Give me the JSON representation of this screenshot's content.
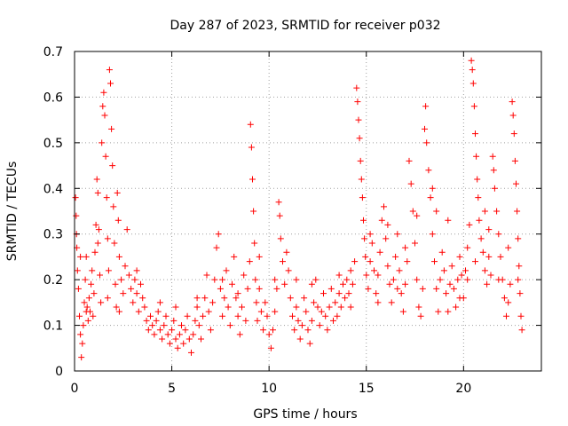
{
  "chart_data": {
    "type": "scatter",
    "title": "Day 287 of 2023, SRMTID for receiver p032",
    "xlabel": "GPS time / hours",
    "ylabel": "SRMTID / TECUs",
    "xlim": [
      0,
      24
    ],
    "ylim": [
      0,
      0.7
    ],
    "xticks": [
      0,
      5,
      10,
      15,
      20
    ],
    "xtick_labels": [
      "0",
      "5",
      "10",
      "15",
      "20"
    ],
    "yticks": [
      0,
      0.1,
      0.2,
      0.3,
      0.4,
      0.5,
      0.6,
      0.7
    ],
    "ytick_labels": [
      "0",
      "0.1",
      "0.2",
      "0.3",
      "0.4",
      "0.5",
      "0.6",
      "0.7"
    ],
    "grid": true,
    "marker": "+",
    "color": "#ff0000",
    "series": [
      {
        "name": "SRMTID",
        "points": [
          [
            0.05,
            0.38
          ],
          [
            0.08,
            0.34
          ],
          [
            0.1,
            0.3
          ],
          [
            0.12,
            0.27
          ],
          [
            0.15,
            0.22
          ],
          [
            0.2,
            0.18
          ],
          [
            0.25,
            0.12
          ],
          [
            0.3,
            0.08
          ],
          [
            0.35,
            0.03
          ],
          [
            0.4,
            0.06
          ],
          [
            0.45,
            0.1
          ],
          [
            0.5,
            0.15
          ],
          [
            0.55,
            0.2
          ],
          [
            0.6,
            0.25
          ],
          [
            0.65,
            0.14
          ],
          [
            0.7,
            0.11
          ],
          [
            0.75,
            0.16
          ],
          [
            0.8,
            0.13
          ],
          [
            0.85,
            0.19
          ],
          [
            0.9,
            0.22
          ],
          [
            0.95,
            0.12
          ],
          [
            1.0,
            0.17
          ],
          [
            1.05,
            0.26
          ],
          [
            1.1,
            0.32
          ],
          [
            1.15,
            0.42
          ],
          [
            1.2,
            0.39
          ],
          [
            1.25,
            0.31
          ],
          [
            1.3,
            0.21
          ],
          [
            1.35,
            0.15
          ],
          [
            1.4,
            0.5
          ],
          [
            1.45,
            0.58
          ],
          [
            1.5,
            0.61
          ],
          [
            1.55,
            0.56
          ],
          [
            1.6,
            0.47
          ],
          [
            1.65,
            0.38
          ],
          [
            1.7,
            0.29
          ],
          [
            1.75,
            0.22
          ],
          [
            1.8,
            0.66
          ],
          [
            1.85,
            0.63
          ],
          [
            1.9,
            0.53
          ],
          [
            1.95,
            0.45
          ],
          [
            2.0,
            0.36
          ],
          [
            2.05,
            0.28
          ],
          [
            2.1,
            0.19
          ],
          [
            2.15,
            0.14
          ],
          [
            2.2,
            0.39
          ],
          [
            2.25,
            0.33
          ],
          [
            2.3,
            0.25
          ],
          [
            2.4,
            0.2
          ],
          [
            2.5,
            0.17
          ],
          [
            2.6,
            0.23
          ],
          [
            2.7,
            0.31
          ],
          [
            2.8,
            0.21
          ],
          [
            2.9,
            0.18
          ],
          [
            3.0,
            0.15
          ],
          [
            3.1,
            0.2
          ],
          [
            3.2,
            0.17
          ],
          [
            3.3,
            0.13
          ],
          [
            3.4,
            0.19
          ],
          [
            3.5,
            0.16
          ],
          [
            3.6,
            0.14
          ],
          [
            3.7,
            0.11
          ],
          [
            3.8,
            0.09
          ],
          [
            3.9,
            0.12
          ],
          [
            4.0,
            0.1
          ],
          [
            4.1,
            0.08
          ],
          [
            4.2,
            0.11
          ],
          [
            4.3,
            0.13
          ],
          [
            4.4,
            0.09
          ],
          [
            4.5,
            0.07
          ],
          [
            4.6,
            0.1
          ],
          [
            4.7,
            0.12
          ],
          [
            4.8,
            0.08
          ],
          [
            4.9,
            0.06
          ],
          [
            5.0,
            0.09
          ],
          [
            5.1,
            0.11
          ],
          [
            5.2,
            0.07
          ],
          [
            5.3,
            0.05
          ],
          [
            5.4,
            0.08
          ],
          [
            5.5,
            0.1
          ],
          [
            5.6,
            0.06
          ],
          [
            5.7,
            0.09
          ],
          [
            5.8,
            0.12
          ],
          [
            5.9,
            0.07
          ],
          [
            6.0,
            0.04
          ],
          [
            6.1,
            0.08
          ],
          [
            6.2,
            0.11
          ],
          [
            6.3,
            0.14
          ],
          [
            6.4,
            0.1
          ],
          [
            6.5,
            0.07
          ],
          [
            6.6,
            0.12
          ],
          [
            6.7,
            0.16
          ],
          [
            6.8,
            0.21
          ],
          [
            6.9,
            0.13
          ],
          [
            7.0,
            0.09
          ],
          [
            7.1,
            0.15
          ],
          [
            7.2,
            0.2
          ],
          [
            7.3,
            0.27
          ],
          [
            7.4,
            0.3
          ],
          [
            7.5,
            0.18
          ],
          [
            7.6,
            0.12
          ],
          [
            7.7,
            0.16
          ],
          [
            7.8,
            0.22
          ],
          [
            7.9,
            0.14
          ],
          [
            8.0,
            0.1
          ],
          [
            8.1,
            0.19
          ],
          [
            8.2,
            0.25
          ],
          [
            8.3,
            0.16
          ],
          [
            8.4,
            0.12
          ],
          [
            8.5,
            0.08
          ],
          [
            8.6,
            0.14
          ],
          [
            8.7,
            0.21
          ],
          [
            8.8,
            0.11
          ],
          [
            8.9,
            0.18
          ],
          [
            9.0,
            0.24
          ],
          [
            9.05,
            0.54
          ],
          [
            9.1,
            0.49
          ],
          [
            9.15,
            0.42
          ],
          [
            9.2,
            0.35
          ],
          [
            9.25,
            0.28
          ],
          [
            9.3,
            0.2
          ],
          [
            9.35,
            0.15
          ],
          [
            9.4,
            0.11
          ],
          [
            9.5,
            0.18
          ],
          [
            9.6,
            0.13
          ],
          [
            9.7,
            0.09
          ],
          [
            9.8,
            0.15
          ],
          [
            9.9,
            0.12
          ],
          [
            10.0,
            0.08
          ],
          [
            10.1,
            0.05
          ],
          [
            10.2,
            0.09
          ],
          [
            10.3,
            0.13
          ],
          [
            10.4,
            0.18
          ],
          [
            10.5,
            0.37
          ],
          [
            10.55,
            0.34
          ],
          [
            10.6,
            0.29
          ],
          [
            10.7,
            0.24
          ],
          [
            10.8,
            0.19
          ],
          [
            10.9,
            0.26
          ],
          [
            11.0,
            0.22
          ],
          [
            11.1,
            0.16
          ],
          [
            11.2,
            0.12
          ],
          [
            11.3,
            0.09
          ],
          [
            11.4,
            0.14
          ],
          [
            11.5,
            0.11
          ],
          [
            11.6,
            0.07
          ],
          [
            11.7,
            0.1
          ],
          [
            11.8,
            0.16
          ],
          [
            11.9,
            0.13
          ],
          [
            12.0,
            0.09
          ],
          [
            12.1,
            0.06
          ],
          [
            12.2,
            0.11
          ],
          [
            12.3,
            0.15
          ],
          [
            12.4,
            0.2
          ],
          [
            12.5,
            0.14
          ],
          [
            12.6,
            0.1
          ],
          [
            12.7,
            0.13
          ],
          [
            12.8,
            0.17
          ],
          [
            12.9,
            0.12
          ],
          [
            13.0,
            0.09
          ],
          [
            13.1,
            0.14
          ],
          [
            13.2,
            0.18
          ],
          [
            13.3,
            0.11
          ],
          [
            13.4,
            0.15
          ],
          [
            13.5,
            0.12
          ],
          [
            13.6,
            0.17
          ],
          [
            13.7,
            0.14
          ],
          [
            13.8,
            0.19
          ],
          [
            13.9,
            0.16
          ],
          [
            14.0,
            0.2
          ],
          [
            14.1,
            0.17
          ],
          [
            14.2,
            0.22
          ],
          [
            14.3,
            0.19
          ],
          [
            14.4,
            0.24
          ],
          [
            14.5,
            0.62
          ],
          [
            14.55,
            0.59
          ],
          [
            14.6,
            0.55
          ],
          [
            14.65,
            0.51
          ],
          [
            14.7,
            0.46
          ],
          [
            14.75,
            0.42
          ],
          [
            14.8,
            0.38
          ],
          [
            14.85,
            0.33
          ],
          [
            14.9,
            0.29
          ],
          [
            14.95,
            0.25
          ],
          [
            15.0,
            0.21
          ],
          [
            15.1,
            0.18
          ],
          [
            15.2,
            0.24
          ],
          [
            15.3,
            0.28
          ],
          [
            15.4,
            0.22
          ],
          [
            15.5,
            0.17
          ],
          [
            15.6,
            0.21
          ],
          [
            15.7,
            0.26
          ],
          [
            15.8,
            0.33
          ],
          [
            15.9,
            0.36
          ],
          [
            16.0,
            0.29
          ],
          [
            16.1,
            0.23
          ],
          [
            16.2,
            0.19
          ],
          [
            16.3,
            0.15
          ],
          [
            16.4,
            0.2
          ],
          [
            16.5,
            0.25
          ],
          [
            16.6,
            0.3
          ],
          [
            16.7,
            0.22
          ],
          [
            16.8,
            0.17
          ],
          [
            16.9,
            0.13
          ],
          [
            17.0,
            0.19
          ],
          [
            17.1,
            0.24
          ],
          [
            17.2,
            0.46
          ],
          [
            17.3,
            0.41
          ],
          [
            17.4,
            0.35
          ],
          [
            17.5,
            0.28
          ],
          [
            17.6,
            0.2
          ],
          [
            17.7,
            0.14
          ],
          [
            17.8,
            0.12
          ],
          [
            17.9,
            0.18
          ],
          [
            18.0,
            0.53
          ],
          [
            18.05,
            0.58
          ],
          [
            18.1,
            0.5
          ],
          [
            18.2,
            0.44
          ],
          [
            18.3,
            0.38
          ],
          [
            18.4,
            0.3
          ],
          [
            18.5,
            0.24
          ],
          [
            18.6,
            0.18
          ],
          [
            18.7,
            0.13
          ],
          [
            18.8,
            0.2
          ],
          [
            18.9,
            0.26
          ],
          [
            19.0,
            0.22
          ],
          [
            19.1,
            0.17
          ],
          [
            19.2,
            0.13
          ],
          [
            19.3,
            0.19
          ],
          [
            19.4,
            0.23
          ],
          [
            19.5,
            0.18
          ],
          [
            19.6,
            0.14
          ],
          [
            19.7,
            0.2
          ],
          [
            19.8,
            0.25
          ],
          [
            19.9,
            0.21
          ],
          [
            20.0,
            0.16
          ],
          [
            20.1,
            0.22
          ],
          [
            20.2,
            0.27
          ],
          [
            20.3,
            0.32
          ],
          [
            20.4,
            0.68
          ],
          [
            20.45,
            0.66
          ],
          [
            20.5,
            0.63
          ],
          [
            20.55,
            0.58
          ],
          [
            20.6,
            0.52
          ],
          [
            20.65,
            0.47
          ],
          [
            20.7,
            0.42
          ],
          [
            20.75,
            0.38
          ],
          [
            20.8,
            0.33
          ],
          [
            20.9,
            0.29
          ],
          [
            21.0,
            0.26
          ],
          [
            21.1,
            0.22
          ],
          [
            21.2,
            0.19
          ],
          [
            21.3,
            0.25
          ],
          [
            21.4,
            0.21
          ],
          [
            21.5,
            0.47
          ],
          [
            21.55,
            0.44
          ],
          [
            21.6,
            0.4
          ],
          [
            21.7,
            0.35
          ],
          [
            21.8,
            0.3
          ],
          [
            21.9,
            0.25
          ],
          [
            22.0,
            0.2
          ],
          [
            22.1,
            0.16
          ],
          [
            22.2,
            0.12
          ],
          [
            22.3,
            0.15
          ],
          [
            22.4,
            0.19
          ],
          [
            22.5,
            0.59
          ],
          [
            22.55,
            0.56
          ],
          [
            22.6,
            0.52
          ],
          [
            22.65,
            0.46
          ],
          [
            22.7,
            0.41
          ],
          [
            22.75,
            0.35
          ],
          [
            22.8,
            0.29
          ],
          [
            22.85,
            0.23
          ],
          [
            22.9,
            0.17
          ],
          [
            22.95,
            0.12
          ],
          [
            23.0,
            0.09
          ],
          [
            0.3,
            0.25
          ],
          [
            0.6,
            0.13
          ],
          [
            1.2,
            0.28
          ],
          [
            1.7,
            0.16
          ],
          [
            2.3,
            0.13
          ],
          [
            3.2,
            0.22
          ],
          [
            4.4,
            0.15
          ],
          [
            5.2,
            0.14
          ],
          [
            6.3,
            0.16
          ],
          [
            7.6,
            0.2
          ],
          [
            8.4,
            0.17
          ],
          [
            9.5,
            0.25
          ],
          [
            10.3,
            0.2
          ],
          [
            11.4,
            0.2
          ],
          [
            12.2,
            0.19
          ],
          [
            13.6,
            0.21
          ],
          [
            14.2,
            0.14
          ],
          [
            15.2,
            0.3
          ],
          [
            16.1,
            0.32
          ],
          [
            16.6,
            0.18
          ],
          [
            17.6,
            0.34
          ],
          [
            18.4,
            0.4
          ],
          [
            19.2,
            0.33
          ],
          [
            19.8,
            0.16
          ],
          [
            20.2,
            0.2
          ],
          [
            21.3,
            0.31
          ],
          [
            21.8,
            0.2
          ],
          [
            22.3,
            0.27
          ],
          [
            22.8,
            0.2
          ],
          [
            15.6,
            0.15
          ],
          [
            17.0,
            0.27
          ],
          [
            18.6,
            0.35
          ],
          [
            20.6,
            0.24
          ],
          [
            21.1,
            0.35
          ]
        ]
      }
    ]
  }
}
